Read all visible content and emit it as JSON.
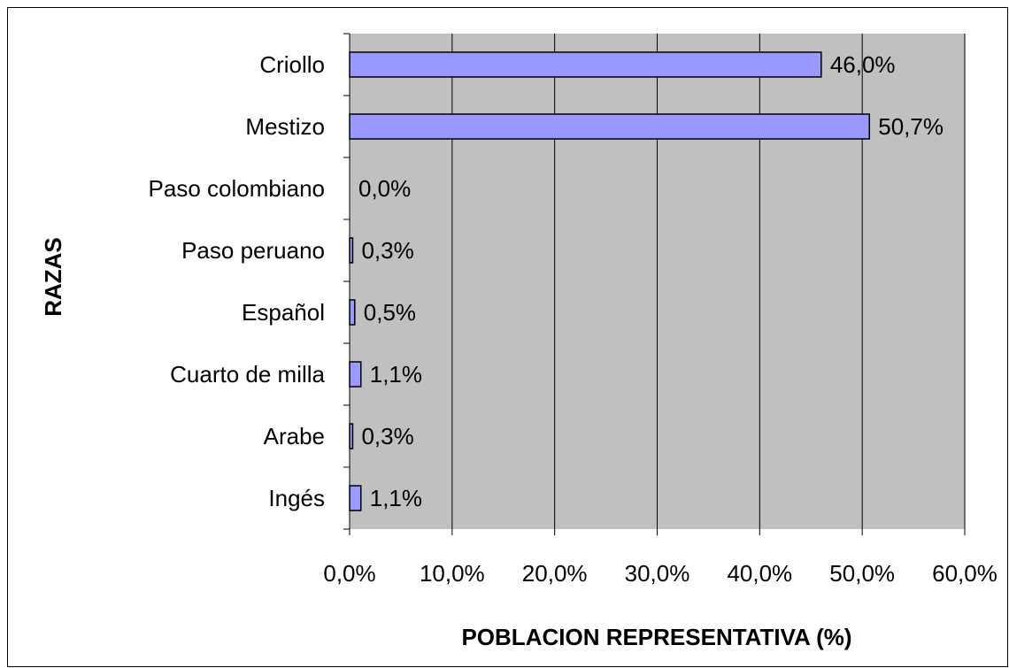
{
  "chart_data": {
    "type": "bar",
    "orientation": "horizontal",
    "xlabel": "POBLACION REPRESENTATIVA (%)",
    "ylabel": "RAZAS",
    "categories": [
      "Criollo",
      "Mestizo",
      "Paso colombiano",
      "Paso peruano",
      "Español",
      "Cuarto de milla",
      "Arabe",
      "Ingés"
    ],
    "values": [
      46.0,
      50.7,
      0.0,
      0.3,
      0.5,
      1.1,
      0.3,
      1.1
    ],
    "value_labels": [
      "46,0%",
      "50,7%",
      "0,0%",
      "0,3%",
      "0,5%",
      "1,1%",
      "0,3%",
      "1,1%"
    ],
    "color": "#9999ff",
    "xlim": [
      0,
      60
    ],
    "xticks": [
      {
        "value": 0,
        "label": "0,0%"
      },
      {
        "value": 10,
        "label": "10,0%"
      },
      {
        "value": 20,
        "label": "20,0%"
      },
      {
        "value": 30,
        "label": "30,0%"
      },
      {
        "value": 40,
        "label": "40,0%"
      },
      {
        "value": 50,
        "label": "50,0%"
      },
      {
        "value": 60,
        "label": "60,0%"
      }
    ],
    "grid": true
  }
}
